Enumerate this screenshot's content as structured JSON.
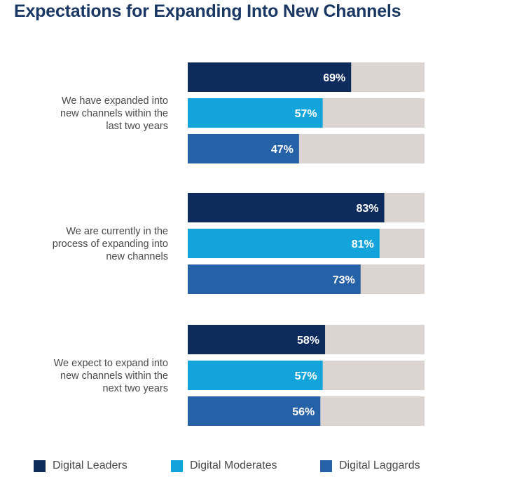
{
  "title": "Expectations for Expanding Into New Channels",
  "colors": {
    "track": "#dcd4d0",
    "series": [
      "#0d2b5c",
      "#13a4dc",
      "#2561a6"
    ]
  },
  "chart_data": {
    "type": "bar",
    "orientation": "horizontal",
    "title": "Expectations for Expanding Into New Channels",
    "categories": [
      [
        "We have expanded into",
        "new channels within the",
        "last two years"
      ],
      [
        "We are currently in the",
        "process of expanding into",
        "new channels"
      ],
      [
        "We expect to expand into",
        "new channels within the",
        "next two years"
      ]
    ],
    "series": [
      {
        "name": "Digital Leaders",
        "values": [
          69,
          83,
          58
        ],
        "labels": [
          "69%",
          "83%",
          "58%"
        ]
      },
      {
        "name": "Digital Moderates",
        "values": [
          57,
          81,
          57
        ],
        "labels": [
          "57%",
          "81%",
          "57%"
        ]
      },
      {
        "name": "Digital Laggards",
        "values": [
          47,
          73,
          56
        ],
        "labels": [
          "47%",
          "73%",
          "56%"
        ]
      }
    ],
    "xlim": [
      0,
      100
    ],
    "grid": false,
    "legend_position": "bottom"
  }
}
